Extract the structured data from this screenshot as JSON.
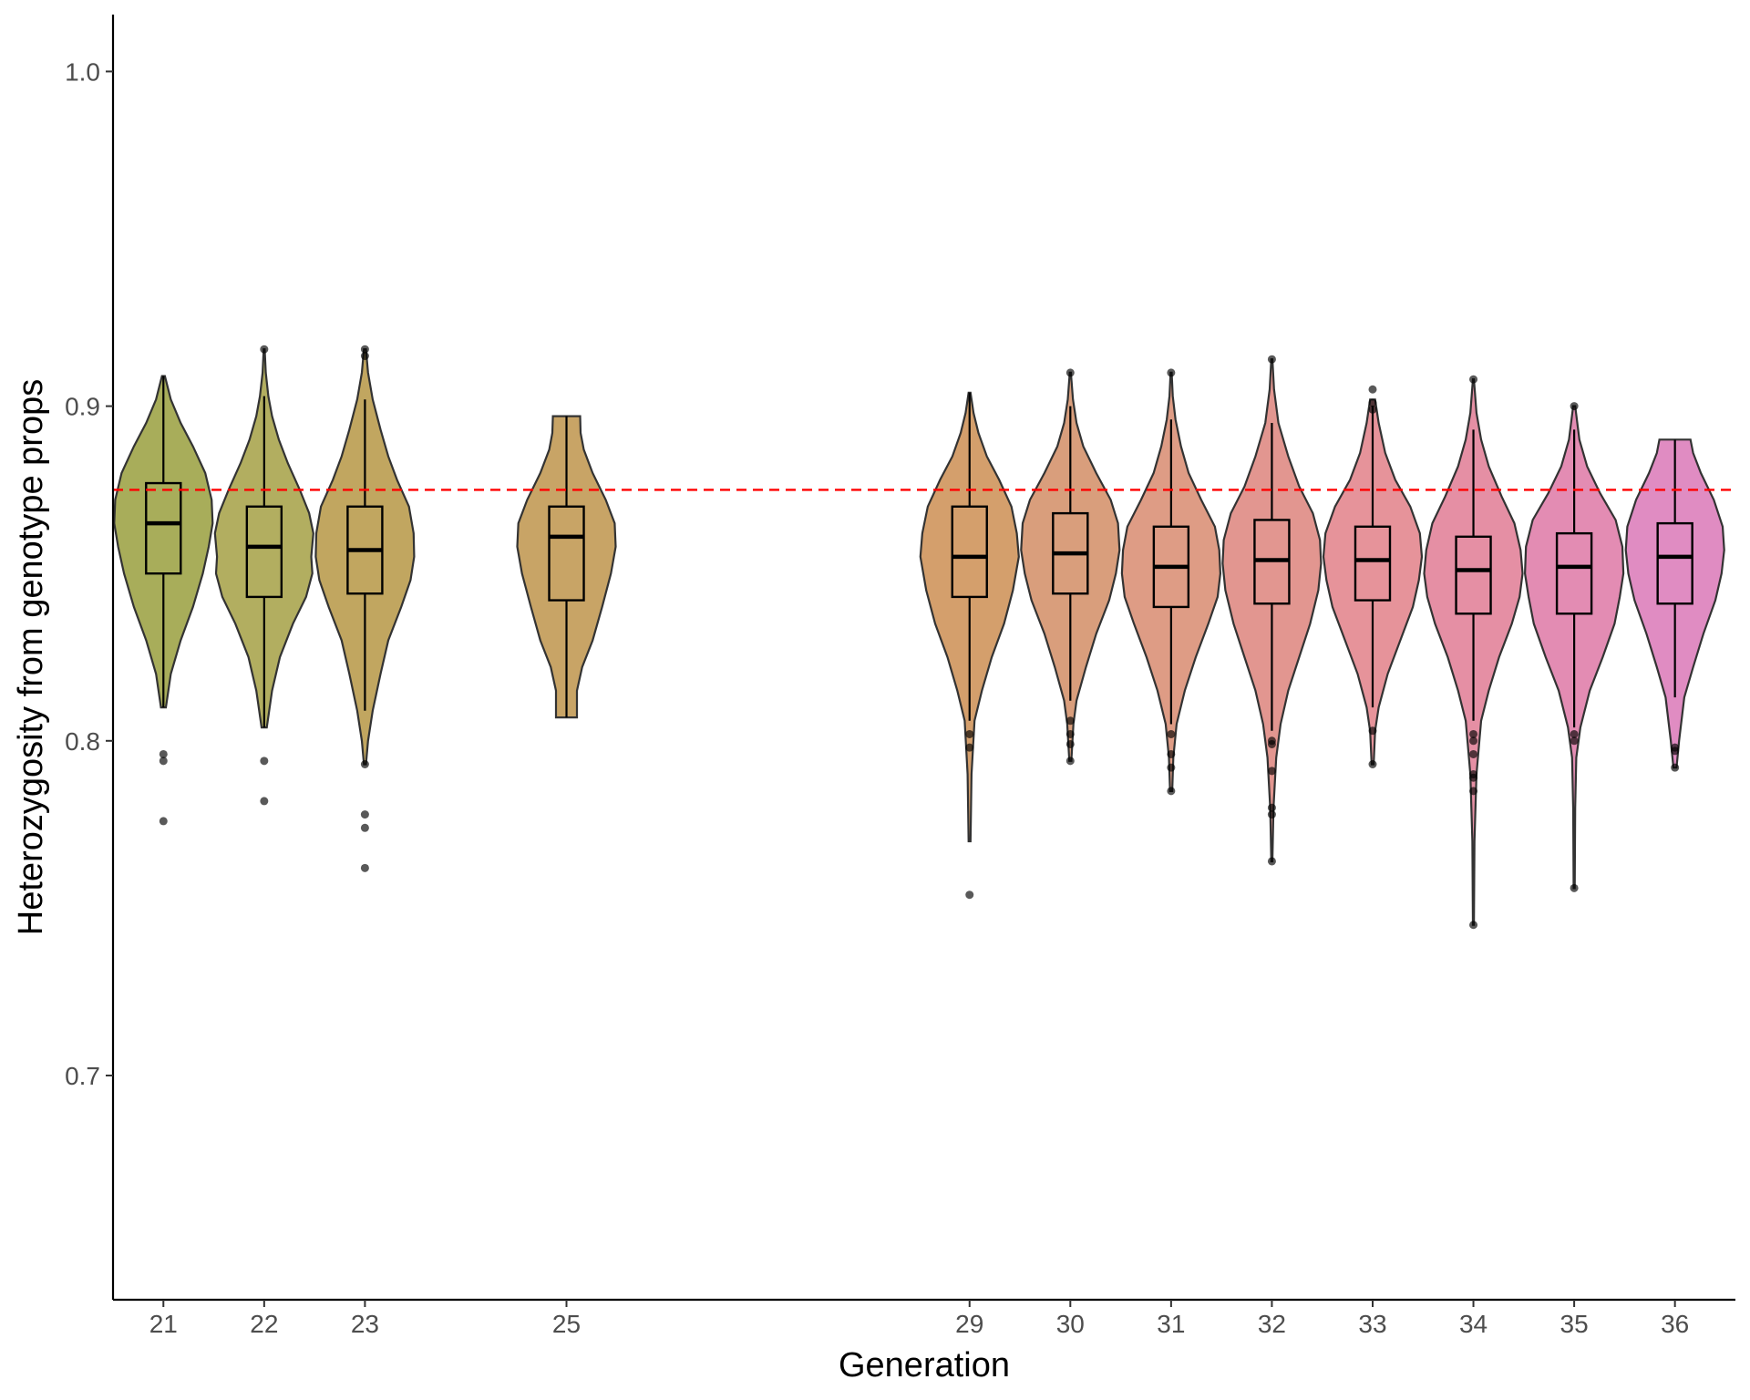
{
  "chart_data": {
    "type": "violin",
    "title": "",
    "xlabel": "Generation",
    "ylabel": "Heterozygosity from genotype props",
    "ylim": [
      0.633,
      1.017
    ],
    "xlim": [
      20.5,
      36.6
    ],
    "y_ticks": [
      0.7,
      0.8,
      0.9,
      1.0
    ],
    "y_tick_labels": [
      "0.7",
      "0.8",
      "0.9",
      "1.0"
    ],
    "reference_line": {
      "y": 0.875,
      "color": "#ff0000",
      "style": "dashed"
    },
    "grid": false,
    "legend": "none",
    "groups": [
      {
        "label": "21",
        "x": 21,
        "color": "#a8ad5a",
        "min": 0.81,
        "max": 0.909,
        "q1": 0.85,
        "median": 0.865,
        "q3": 0.877,
        "outliers": [
          0.796,
          0.794,
          0.776
        ],
        "density": [
          [
            0.81,
            0.005
          ],
          [
            0.82,
            0.015
          ],
          [
            0.83,
            0.035
          ],
          [
            0.84,
            0.06
          ],
          [
            0.85,
            0.08
          ],
          [
            0.858,
            0.092
          ],
          [
            0.865,
            0.1
          ],
          [
            0.872,
            0.098
          ],
          [
            0.88,
            0.085
          ],
          [
            0.888,
            0.06
          ],
          [
            0.895,
            0.035
          ],
          [
            0.902,
            0.015
          ],
          [
            0.909,
            0.003
          ]
        ]
      },
      {
        "label": "22",
        "x": 22,
        "color": "#b2ae60",
        "min": 0.804,
        "max": 0.903,
        "q1": 0.843,
        "median": 0.858,
        "q3": 0.87,
        "outliers": [
          0.917,
          0.794,
          0.782
        ],
        "density": [
          [
            0.804,
            0.005
          ],
          [
            0.815,
            0.015
          ],
          [
            0.825,
            0.03
          ],
          [
            0.835,
            0.055
          ],
          [
            0.843,
            0.08
          ],
          [
            0.85,
            0.092
          ],
          [
            0.855,
            0.09
          ],
          [
            0.862,
            0.094
          ],
          [
            0.868,
            0.086
          ],
          [
            0.875,
            0.068
          ],
          [
            0.883,
            0.045
          ],
          [
            0.89,
            0.028
          ],
          [
            0.897,
            0.015
          ],
          [
            0.903,
            0.008
          ],
          [
            0.91,
            0.003
          ],
          [
            0.917,
            0.001
          ]
        ]
      },
      {
        "label": "23",
        "x": 23,
        "color": "#c1a660",
        "min": 0.809,
        "max": 0.902,
        "q1": 0.844,
        "median": 0.857,
        "q3": 0.87,
        "outliers": [
          0.917,
          0.915,
          0.793,
          0.778,
          0.774,
          0.762
        ],
        "density": [
          [
            0.793,
            0.002
          ],
          [
            0.8,
            0.006
          ],
          [
            0.809,
            0.015
          ],
          [
            0.82,
            0.03
          ],
          [
            0.83,
            0.045
          ],
          [
            0.84,
            0.07
          ],
          [
            0.848,
            0.088
          ],
          [
            0.855,
            0.095
          ],
          [
            0.862,
            0.094
          ],
          [
            0.87,
            0.085
          ],
          [
            0.878,
            0.062
          ],
          [
            0.885,
            0.045
          ],
          [
            0.893,
            0.03
          ],
          [
            0.902,
            0.015
          ],
          [
            0.91,
            0.006
          ],
          [
            0.917,
            0.002
          ]
        ]
      },
      {
        "label": "25",
        "x": 25,
        "color": "#c8a466",
        "min": 0.807,
        "max": 0.897,
        "q1": 0.842,
        "median": 0.861,
        "q3": 0.87,
        "outliers": [],
        "density": [
          [
            0.807,
            0.02
          ],
          [
            0.815,
            0.02
          ],
          [
            0.822,
            0.03
          ],
          [
            0.83,
            0.05
          ],
          [
            0.84,
            0.068
          ],
          [
            0.85,
            0.085
          ],
          [
            0.858,
            0.094
          ],
          [
            0.865,
            0.092
          ],
          [
            0.872,
            0.075
          ],
          [
            0.88,
            0.05
          ],
          [
            0.887,
            0.033
          ],
          [
            0.892,
            0.027
          ],
          [
            0.897,
            0.026
          ]
        ]
      },
      {
        "label": "29",
        "x": 29,
        "color": "#d49f6c",
        "min": 0.806,
        "max": 0.904,
        "q1": 0.843,
        "median": 0.855,
        "q3": 0.87,
        "outliers": [
          0.802,
          0.798,
          0.754
        ],
        "density": [
          [
            0.77,
            0.002
          ],
          [
            0.79,
            0.004
          ],
          [
            0.806,
            0.01
          ],
          [
            0.815,
            0.025
          ],
          [
            0.825,
            0.045
          ],
          [
            0.835,
            0.07
          ],
          [
            0.845,
            0.088
          ],
          [
            0.855,
            0.1
          ],
          [
            0.862,
            0.096
          ],
          [
            0.87,
            0.085
          ],
          [
            0.878,
            0.06
          ],
          [
            0.885,
            0.035
          ],
          [
            0.892,
            0.018
          ],
          [
            0.898,
            0.008
          ],
          [
            0.904,
            0.002
          ]
        ]
      },
      {
        "label": "30",
        "x": 30,
        "color": "#d99e7c",
        "min": 0.812,
        "max": 0.9,
        "q1": 0.844,
        "median": 0.856,
        "q3": 0.868,
        "outliers": [
          0.91,
          0.806,
          0.802,
          0.799,
          0.794
        ],
        "density": [
          [
            0.794,
            0.002
          ],
          [
            0.805,
            0.006
          ],
          [
            0.812,
            0.012
          ],
          [
            0.822,
            0.03
          ],
          [
            0.832,
            0.05
          ],
          [
            0.842,
            0.075
          ],
          [
            0.85,
            0.088
          ],
          [
            0.857,
            0.095
          ],
          [
            0.865,
            0.092
          ],
          [
            0.872,
            0.078
          ],
          [
            0.88,
            0.05
          ],
          [
            0.888,
            0.025
          ],
          [
            0.895,
            0.012
          ],
          [
            0.902,
            0.005
          ],
          [
            0.91,
            0.001
          ]
        ]
      },
      {
        "label": "31",
        "x": 31,
        "color": "#de9c85",
        "min": 0.805,
        "max": 0.896,
        "q1": 0.84,
        "median": 0.852,
        "q3": 0.864,
        "outliers": [
          0.91,
          0.802,
          0.796,
          0.792,
          0.785
        ],
        "density": [
          [
            0.785,
            0.002
          ],
          [
            0.795,
            0.004
          ],
          [
            0.805,
            0.01
          ],
          [
            0.815,
            0.025
          ],
          [
            0.825,
            0.045
          ],
          [
            0.835,
            0.068
          ],
          [
            0.843,
            0.085
          ],
          [
            0.85,
            0.09
          ],
          [
            0.857,
            0.088
          ],
          [
            0.864,
            0.08
          ],
          [
            0.872,
            0.055
          ],
          [
            0.88,
            0.032
          ],
          [
            0.888,
            0.018
          ],
          [
            0.896,
            0.008
          ],
          [
            0.903,
            0.003
          ],
          [
            0.91,
            0.001
          ]
        ]
      },
      {
        "label": "32",
        "x": 32,
        "color": "#e29690",
        "min": 0.803,
        "max": 0.895,
        "q1": 0.841,
        "median": 0.854,
        "q3": 0.866,
        "outliers": [
          0.914,
          0.8,
          0.799,
          0.791,
          0.78,
          0.778,
          0.764
        ],
        "density": [
          [
            0.764,
            0.001
          ],
          [
            0.78,
            0.003
          ],
          [
            0.795,
            0.008
          ],
          [
            0.805,
            0.016
          ],
          [
            0.815,
            0.03
          ],
          [
            0.825,
            0.05
          ],
          [
            0.835,
            0.07
          ],
          [
            0.845,
            0.085
          ],
          [
            0.853,
            0.09
          ],
          [
            0.86,
            0.088
          ],
          [
            0.868,
            0.075
          ],
          [
            0.876,
            0.05
          ],
          [
            0.885,
            0.03
          ],
          [
            0.895,
            0.012
          ],
          [
            0.905,
            0.004
          ],
          [
            0.914,
            0.001
          ]
        ]
      },
      {
        "label": "33",
        "x": 33,
        "color": "#e6939a",
        "min": 0.81,
        "max": 0.9,
        "q1": 0.842,
        "median": 0.854,
        "q3": 0.864,
        "outliers": [
          0.905,
          0.901,
          0.899,
          0.803,
          0.793
        ],
        "density": [
          [
            0.793,
            0.002
          ],
          [
            0.803,
            0.005
          ],
          [
            0.81,
            0.012
          ],
          [
            0.82,
            0.03
          ],
          [
            0.83,
            0.055
          ],
          [
            0.84,
            0.08
          ],
          [
            0.848,
            0.092
          ],
          [
            0.855,
            0.098
          ],
          [
            0.862,
            0.094
          ],
          [
            0.87,
            0.075
          ],
          [
            0.878,
            0.045
          ],
          [
            0.886,
            0.025
          ],
          [
            0.895,
            0.012
          ],
          [
            0.902,
            0.005
          ]
        ]
      },
      {
        "label": "34",
        "x": 34,
        "color": "#e58fa4",
        "min": 0.806,
        "max": 0.893,
        "q1": 0.838,
        "median": 0.851,
        "q3": 0.861,
        "outliers": [
          0.908,
          0.802,
          0.8,
          0.796,
          0.79,
          0.789,
          0.785,
          0.745
        ],
        "density": [
          [
            0.745,
            0.001
          ],
          [
            0.77,
            0.002
          ],
          [
            0.79,
            0.006
          ],
          [
            0.806,
            0.015
          ],
          [
            0.815,
            0.03
          ],
          [
            0.825,
            0.05
          ],
          [
            0.835,
            0.075
          ],
          [
            0.843,
            0.09
          ],
          [
            0.85,
            0.096
          ],
          [
            0.857,
            0.092
          ],
          [
            0.865,
            0.08
          ],
          [
            0.873,
            0.055
          ],
          [
            0.882,
            0.03
          ],
          [
            0.89,
            0.015
          ],
          [
            0.898,
            0.006
          ],
          [
            0.908,
            0.001
          ]
        ]
      },
      {
        "label": "35",
        "x": 35,
        "color": "#e38cb3",
        "min": 0.804,
        "max": 0.893,
        "q1": 0.838,
        "median": 0.852,
        "q3": 0.862,
        "outliers": [
          0.9,
          0.802,
          0.8,
          0.756
        ],
        "density": [
          [
            0.756,
            0.001
          ],
          [
            0.78,
            0.002
          ],
          [
            0.795,
            0.004
          ],
          [
            0.804,
            0.012
          ],
          [
            0.815,
            0.03
          ],
          [
            0.825,
            0.055
          ],
          [
            0.835,
            0.078
          ],
          [
            0.843,
            0.088
          ],
          [
            0.85,
            0.095
          ],
          [
            0.858,
            0.093
          ],
          [
            0.866,
            0.08
          ],
          [
            0.874,
            0.05
          ],
          [
            0.882,
            0.025
          ],
          [
            0.89,
            0.01
          ],
          [
            0.9,
            0.002
          ]
        ]
      },
      {
        "label": "36",
        "x": 36,
        "color": "#e08cc2",
        "min": 0.813,
        "max": 0.89,
        "q1": 0.841,
        "median": 0.855,
        "q3": 0.865,
        "outliers": [
          0.798,
          0.797,
          0.792
        ],
        "density": [
          [
            0.792,
            0.003
          ],
          [
            0.8,
            0.008
          ],
          [
            0.813,
            0.018
          ],
          [
            0.822,
            0.035
          ],
          [
            0.832,
            0.055
          ],
          [
            0.842,
            0.078
          ],
          [
            0.85,
            0.09
          ],
          [
            0.857,
            0.095
          ],
          [
            0.864,
            0.092
          ],
          [
            0.872,
            0.075
          ],
          [
            0.88,
            0.05
          ],
          [
            0.886,
            0.035
          ],
          [
            0.89,
            0.03
          ]
        ]
      }
    ]
  }
}
